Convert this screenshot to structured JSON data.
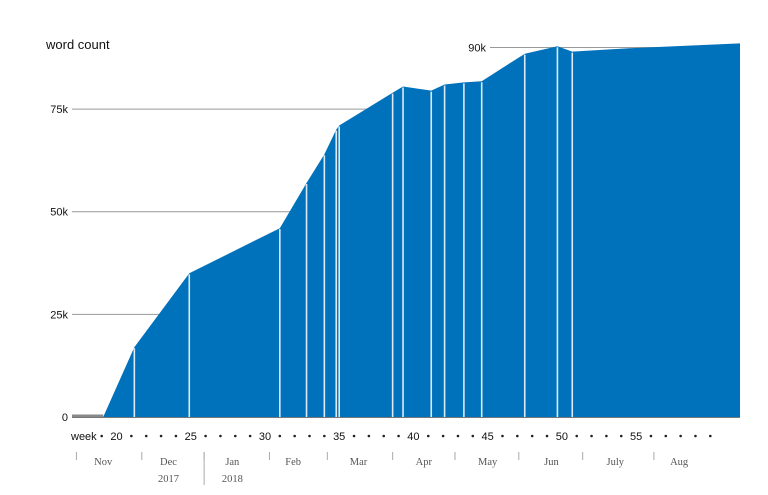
{
  "chart_data": {
    "type": "area",
    "title": "",
    "ylabel": "word count",
    "xlabel": "week",
    "ylim": [
      0,
      95000
    ],
    "xlim": [
      17,
      62
    ],
    "yticks": [
      {
        "value": 0,
        "label": "0"
      },
      {
        "value": 25000,
        "label": "25k"
      },
      {
        "value": 50000,
        "label": "50k"
      },
      {
        "value": 75000,
        "label": "75k"
      },
      {
        "value": 90000,
        "label": "90k"
      }
    ],
    "week_ticks": [
      {
        "week": 20,
        "label": "20"
      },
      {
        "week": 25,
        "label": "25"
      },
      {
        "week": 30,
        "label": "30"
      },
      {
        "week": 35,
        "label": "35"
      },
      {
        "week": 40,
        "label": "40"
      },
      {
        "week": 45,
        "label": "45"
      },
      {
        "week": 50,
        "label": "50"
      },
      {
        "week": 55,
        "label": "55"
      }
    ],
    "week_dots": [
      19,
      21,
      22,
      23,
      24,
      26,
      27,
      28,
      29,
      31,
      32,
      33,
      34,
      36,
      37,
      38,
      39,
      41,
      42,
      43,
      44,
      46,
      47,
      48,
      49,
      51,
      52,
      53,
      54,
      56,
      57,
      58,
      59,
      60
    ],
    "months": [
      {
        "label": "Nov",
        "center": 19.1,
        "sep": 17.3
      },
      {
        "label": "Dec",
        "center": 23.5,
        "sep": 21.7
      },
      {
        "label": "Jan",
        "center": 27.8,
        "sep": 25.9
      },
      {
        "label": "Feb",
        "center": 31.9,
        "sep": 30.3
      },
      {
        "label": "Mar",
        "center": 36.3,
        "sep": 34.2
      },
      {
        "label": "Apr",
        "center": 40.7,
        "sep": 38.6
      },
      {
        "label": "May",
        "center": 45.0,
        "sep": 42.8
      },
      {
        "label": "Jun",
        "center": 49.3,
        "sep": 47.1
      },
      {
        "label": "July",
        "center": 53.6,
        "sep": 51.4
      },
      {
        "label": "Aug",
        "center": 57.9,
        "sep": 56.2
      }
    ],
    "years": [
      {
        "label": "2017",
        "center": 23.5
      },
      {
        "label": "2018",
        "center": 27.8,
        "sep": 25.9
      }
    ],
    "series": [
      {
        "color": "#0072bb",
        "points": [
          [
            17,
            0
          ],
          [
            19.1,
            0
          ],
          [
            21.2,
            17000
          ],
          [
            24.9,
            35000
          ],
          [
            31.0,
            46000
          ],
          [
            32.8,
            57000
          ],
          [
            34.0,
            64000
          ],
          [
            34.8,
            70000
          ],
          [
            35.0,
            71000
          ],
          [
            38.6,
            79000
          ],
          [
            39.3,
            80500
          ],
          [
            41.2,
            79500
          ],
          [
            42.1,
            81000
          ],
          [
            43.4,
            81500
          ],
          [
            44.6,
            81800
          ],
          [
            47.5,
            88500
          ],
          [
            49.7,
            90300
          ],
          [
            50.7,
            89000
          ],
          [
            54.5,
            89800
          ],
          [
            62.0,
            91000
          ]
        ]
      }
    ],
    "marker_weeks": [
      21.2,
      24.9,
      31.0,
      32.8,
      34.0,
      34.8,
      35.0,
      38.6,
      39.3,
      41.2,
      42.1,
      43.4,
      44.6,
      47.5,
      49.7,
      50.7
    ],
    "colors": {
      "area": "#0072bb",
      "grid": "#999999",
      "baseline": "#777777",
      "separator": "#aaaaaa"
    }
  }
}
